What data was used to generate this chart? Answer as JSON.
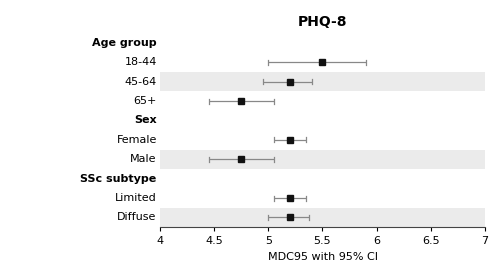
{
  "title": "PHQ-8",
  "xlabel": "MDC95 with 95% CI",
  "xlim": [
    4,
    7
  ],
  "xticks": [
    4,
    4.5,
    5,
    5.5,
    6,
    6.5,
    7
  ],
  "xtick_labels": [
    "4",
    "4.5",
    "5",
    "5.5",
    "6",
    "6.5",
    "7"
  ],
  "row_layout": [
    {
      "type": "header",
      "label": "Age group"
    },
    {
      "type": "data",
      "label": "18-44",
      "idx": 0,
      "shaded": false
    },
    {
      "type": "data",
      "label": "45-64",
      "idx": 1,
      "shaded": true
    },
    {
      "type": "data",
      "label": "65+",
      "idx": 2,
      "shaded": false
    },
    {
      "type": "header",
      "label": "Sex"
    },
    {
      "type": "data",
      "label": "Female",
      "idx": 3,
      "shaded": false
    },
    {
      "type": "data",
      "label": "Male",
      "idx": 4,
      "shaded": true
    },
    {
      "type": "header",
      "label": "SSc subtype"
    },
    {
      "type": "data",
      "label": "Limited",
      "idx": 5,
      "shaded": false
    },
    {
      "type": "data",
      "label": "Diffuse",
      "idx": 6,
      "shaded": true
    }
  ],
  "values": [
    5.5,
    5.2,
    4.75,
    5.2,
    4.75,
    5.2,
    5.2
  ],
  "ci_low": [
    5.0,
    4.95,
    4.45,
    5.05,
    4.45,
    5.05,
    5.0
  ],
  "ci_high": [
    5.9,
    5.4,
    5.05,
    5.35,
    5.05,
    5.35,
    5.38
  ],
  "shaded_color": "#ebebeb",
  "point_color": "#111111",
  "line_color": "#888888",
  "bg_color": "#ffffff",
  "title_fontsize": 10,
  "label_fontsize": 8,
  "header_fontsize": 8,
  "tick_fontsize": 8
}
